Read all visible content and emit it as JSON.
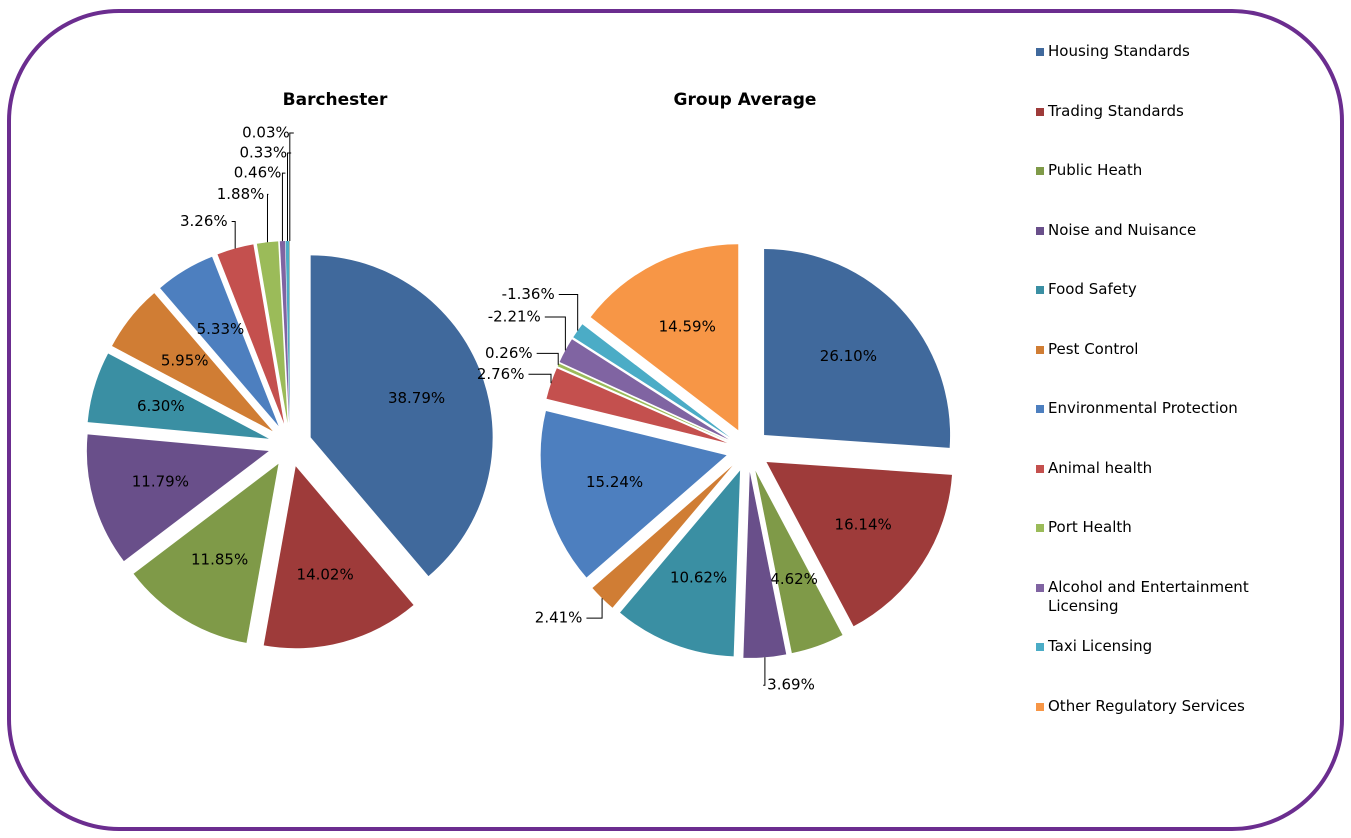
{
  "chart_data": [
    {
      "type": "pie",
      "title": "Barchester",
      "categories": [
        "Housing Standards",
        "Trading Standards",
        "Public Heath",
        "Noise and Nuisance",
        "Food Safety",
        "Pest Control",
        "Environmental Protection",
        "Animal health",
        "Port Health",
        "Alcohol and Entertainment Licensing",
        "Taxi Licensing",
        "Other Regulatory Services"
      ],
      "values": [
        38.79,
        14.02,
        11.85,
        11.79,
        6.3,
        5.95,
        5.33,
        3.26,
        1.88,
        0.46,
        0.33,
        0.03
      ],
      "value_labels": [
        "38.79%",
        "14.02%",
        "11.85%",
        "11.79%",
        "6.30%",
        "5.95%",
        "5.33%",
        "3.26%",
        "1.88%",
        "0.46%",
        "0.33%",
        "0.03%"
      ],
      "colors": [
        "#40699c",
        "#9e3b3a",
        "#7f9a48",
        "#694f8a",
        "#3a8fa3",
        "#d07d34",
        "#4d7fbf",
        "#c4504e",
        "#9bbb59",
        "#8064a2",
        "#4bacc6",
        "#f79646"
      ],
      "legend": "right"
    },
    {
      "type": "pie",
      "title": "Group Average",
      "categories": [
        "Housing Standards",
        "Trading Standards",
        "Public Heath",
        "Noise and Nuisance",
        "Food Safety",
        "Pest Control",
        "Environmental Protection",
        "Animal health",
        "Port Health",
        "Alcohol and Entertainment Licensing",
        "Taxi Licensing",
        "Other Regulatory Services"
      ],
      "values": [
        26.1,
        16.14,
        4.62,
        3.69,
        10.62,
        2.41,
        15.24,
        2.76,
        0.26,
        -2.21,
        -1.36,
        14.59
      ],
      "value_labels": [
        "26.10%",
        "16.14%",
        "4.62%",
        "3.69%",
        "10.62%",
        "2.41%",
        "15.24%",
        "2.76%",
        "0.26%",
        "-2.21%",
        "-1.36%",
        "14.59%"
      ],
      "colors": [
        "#40699c",
        "#9e3b3a",
        "#7f9a48",
        "#694f8a",
        "#3a8fa3",
        "#d07d34",
        "#4d7fbf",
        "#c4504e",
        "#9bbb59",
        "#8064a2",
        "#4bacc6",
        "#f79646"
      ],
      "legend": "right"
    }
  ]
}
